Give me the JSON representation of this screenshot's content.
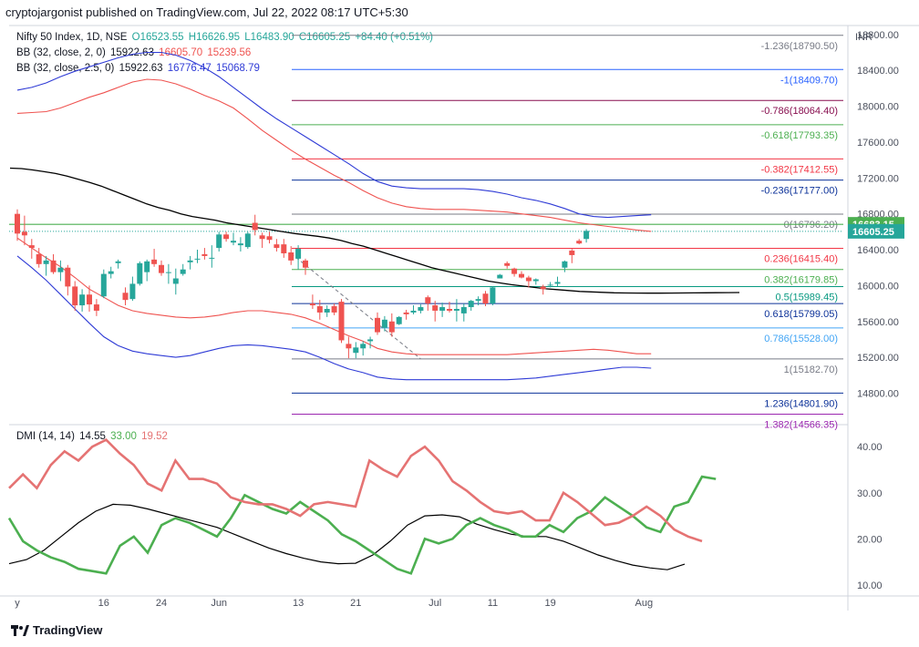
{
  "header": {
    "publisher": "cryptojargonist published on TradingView.com, Jul 22, 2022 08:17 UTC+5:30"
  },
  "legend": {
    "symbol": "Nifty 50 Index, 1D, NSE",
    "open": "O16523.55",
    "high": "H16626.95",
    "low": "L16483.90",
    "close": "C16605.25",
    "change": "+84.40 (+0.51%)",
    "bb1_name": "BB (32, close, 2, 0)",
    "bb1_basis": "15922.63",
    "bb1_upper": "16605.70",
    "bb1_lower": "15239.56",
    "bb2_name": "BB (32, close, 2.5, 0)",
    "bb2_basis": "15922.63",
    "bb2_upper": "16776.47",
    "bb2_lower": "15068.79",
    "dmi_name": "DMI (14, 14)",
    "dmi_adx": "14.55",
    "dmi_plus": "33.00",
    "dmi_minus": "19.52"
  },
  "axis": {
    "currency": "INR",
    "price_ticks": [
      "18800.00",
      "18400.00",
      "18000.00",
      "17600.00",
      "17200.00",
      "16800.00",
      "16400.00",
      "16000.00",
      "15600.00",
      "15200.00",
      "14800.00"
    ],
    "price_tick_values": [
      18800,
      18400,
      18000,
      17600,
      17200,
      16800,
      16400,
      16000,
      15600,
      15200,
      14800
    ],
    "dmi_ticks": [
      "40.00",
      "30.00",
      "20.00",
      "10.00"
    ],
    "dmi_tick_values": [
      40,
      30,
      20,
      10
    ],
    "date_labels": [
      "y",
      "16",
      "24",
      "Jun",
      "13",
      "21",
      "Jul",
      "11",
      "19",
      "Aug"
    ],
    "date_label_index": [
      0,
      12,
      20,
      28,
      39,
      47,
      58,
      66,
      74,
      87
    ],
    "price_badges": [
      {
        "text": "16683.15",
        "value": 16683.15,
        "color": "#4caf50"
      },
      {
        "text": "16605.25",
        "value": 16605.25,
        "color": "#26a69a"
      }
    ]
  },
  "fib_levels": [
    {
      "label": "-1.236(18790.50)",
      "value": 18790.5,
      "color": "#787b86"
    },
    {
      "label": "-1(18409.70)",
      "value": 18409.7,
      "color": "#2962ff"
    },
    {
      "label": "-0.786(18064.40)",
      "value": 18064.4,
      "color": "#880e4f"
    },
    {
      "label": "-0.618(17793.35)",
      "value": 17793.35,
      "color": "#4caf50"
    },
    {
      "label": "-0.382(17412.55)",
      "value": 17412.55,
      "color": "#f23645"
    },
    {
      "label": "-0.236(17177.00)",
      "value": 17177.0,
      "color": "#0c3299"
    },
    {
      "label": "0(16796.20)",
      "value": 16796.2,
      "color": "#787b86"
    },
    {
      "label": "0.236(16415.40)",
      "value": 16415.4,
      "color": "#f23645"
    },
    {
      "label": "0.382(16179.85)",
      "value": 16179.85,
      "color": "#4caf50"
    },
    {
      "label": "0.5(15989.45)",
      "value": 15989.45,
      "color": "#089981"
    },
    {
      "label": "0.618(15799.05)",
      "value": 15799.05,
      "color": "#0c3299"
    },
    {
      "label": "0.786(15528.00)",
      "value": 15528.0,
      "color": "#42a5f5"
    },
    {
      "label": "1(15182.70)",
      "value": 15182.7,
      "color": "#787b86"
    },
    {
      "label": "1.236(14801.90)",
      "value": 14801.9,
      "color": "#0c3299"
    },
    {
      "label": "1.382(14566.35)",
      "value": 14566.35,
      "color": "#9c27b0"
    }
  ],
  "colors": {
    "up": "#26a69a",
    "down": "#ef5350",
    "bb_basis": "#000000",
    "bb1": "#ef5350",
    "bb2": "#2f3bd6",
    "adx": "#000000",
    "di_plus": "#4caf50",
    "di_minus": "#e57373"
  },
  "chart_data": [
    {
      "type": "candlestick",
      "title": "Nifty 50 Index, 1D, NSE",
      "x_index_start": 0,
      "ylim": [
        14480,
        18900
      ],
      "ohlc": [
        [
          16800,
          16850,
          16500,
          16580
        ],
        [
          16600,
          16780,
          16450,
          16560
        ],
        [
          16450,
          16520,
          16300,
          16420
        ],
        [
          16350,
          16420,
          16200,
          16240
        ],
        [
          16240,
          16330,
          16110,
          16280
        ],
        [
          16280,
          16350,
          16130,
          16150
        ],
        [
          16150,
          16280,
          16050,
          16200
        ],
        [
          16200,
          16230,
          15890,
          15990
        ],
        [
          15990,
          16050,
          15720,
          15780
        ],
        [
          15780,
          15960,
          15710,
          15900
        ],
        [
          15900,
          16000,
          15710,
          15790
        ],
        [
          15790,
          15850,
          15660,
          15720
        ],
        [
          15880,
          16180,
          15860,
          16130
        ],
        [
          16130,
          16210,
          16080,
          16160
        ],
        [
          16250,
          16290,
          16190,
          16270
        ],
        [
          15920,
          15980,
          15780,
          15840
        ],
        [
          15850,
          16100,
          15830,
          16020
        ],
        [
          16020,
          16270,
          16000,
          16250
        ],
        [
          16150,
          16290,
          16050,
          16270
        ],
        [
          16290,
          16410,
          16210,
          16240
        ],
        [
          16230,
          16280,
          16110,
          16140
        ],
        [
          16140,
          16240,
          16020,
          16150
        ],
        [
          16020,
          16190,
          15900,
          16080
        ],
        [
          16130,
          16240,
          16110,
          16180
        ],
        [
          16260,
          16330,
          16180,
          16280
        ],
        [
          16300,
          16400,
          16250,
          16300
        ],
        [
          16350,
          16420,
          16290,
          16330
        ],
        [
          16310,
          16450,
          16200,
          16310
        ],
        [
          16420,
          16600,
          16380,
          16570
        ],
        [
          16570,
          16600,
          16490,
          16520
        ],
        [
          16480,
          16590,
          16450,
          16500
        ],
        [
          16450,
          16540,
          16380,
          16470
        ],
        [
          16430,
          16600,
          16410,
          16580
        ],
        [
          16700,
          16790,
          16560,
          16620
        ],
        [
          16560,
          16590,
          16420,
          16520
        ],
        [
          16550,
          16600,
          16470,
          16510
        ],
        [
          16460,
          16520,
          16380,
          16420
        ],
        [
          16460,
          16520,
          16310,
          16360
        ],
        [
          16370,
          16440,
          16230,
          16280
        ],
        [
          16300,
          16450,
          16180,
          16410
        ],
        [
          16280,
          16300,
          16120,
          16200
        ],
        [
          15800,
          15900,
          15740,
          15780
        ],
        [
          15770,
          15840,
          15620,
          15700
        ],
        [
          15700,
          15780,
          15650,
          15740
        ],
        [
          15770,
          15800,
          15670,
          15700
        ],
        [
          15820,
          15850,
          15360,
          15390
        ],
        [
          15350,
          15430,
          15190,
          15300
        ],
        [
          15250,
          15370,
          15190,
          15310
        ],
        [
          15300,
          15380,
          15220,
          15350
        ],
        [
          15380,
          15430,
          15300,
          15400
        ],
        [
          15640,
          15700,
          15450,
          15480
        ],
        [
          15530,
          15660,
          15490,
          15620
        ],
        [
          15600,
          15690,
          15430,
          15480
        ],
        [
          15570,
          15660,
          15560,
          15650
        ],
        [
          15700,
          15730,
          15620,
          15680
        ],
        [
          15700,
          15780,
          15680,
          15720
        ],
        [
          15720,
          15790,
          15690,
          15760
        ],
        [
          15870,
          15890,
          15720,
          15800
        ],
        [
          15780,
          15830,
          15600,
          15720
        ],
        [
          15720,
          15810,
          15650,
          15760
        ],
        [
          15740,
          15820,
          15700,
          15720
        ],
        [
          15720,
          15850,
          15600,
          15740
        ],
        [
          15690,
          15800,
          15600,
          15760
        ],
        [
          15760,
          15840,
          15720,
          15830
        ],
        [
          15830,
          15880,
          15780,
          15850
        ],
        [
          15910,
          15940,
          15770,
          15800
        ],
        [
          15800,
          15990,
          15780,
          15980
        ],
        [
          16080,
          16130,
          16080,
          16120
        ],
        [
          16250,
          16270,
          16190,
          16220
        ],
        [
          16190,
          16200,
          16100,
          16130
        ],
        [
          16130,
          16160,
          16080,
          16090
        ],
        [
          16090,
          16110,
          15980,
          16050
        ],
        [
          16050,
          16080,
          16010,
          16070
        ],
        [
          15990,
          16010,
          15900,
          15960
        ],
        [
          16000,
          16040,
          15980,
          16010
        ],
        [
          16020,
          16100,
          15990,
          16040
        ],
        [
          16200,
          16280,
          16150,
          16270
        ],
        [
          16390,
          16410,
          16250,
          16340
        ],
        [
          16500,
          16520,
          16460,
          16470
        ],
        [
          16520,
          16630,
          16480,
          16610
        ]
      ],
      "bb_basis": [
        17310,
        17305,
        17290,
        17270,
        17250,
        17220,
        17185,
        17150,
        17110,
        17060,
        17010,
        16960,
        16910,
        16870,
        16840,
        16800,
        16770,
        16750,
        16730,
        16700,
        16680,
        16660,
        16640,
        16620,
        16600,
        16580,
        16565,
        16550,
        16530,
        16505,
        16470,
        16440,
        16400,
        16360,
        16320,
        16280,
        16240,
        16200,
        16170,
        16140,
        16110,
        16080,
        16050,
        16030,
        16010,
        15995,
        15980,
        15965,
        15955,
        15945,
        15935,
        15930,
        15925,
        15920,
        15918,
        15917,
        15916,
        15916,
        15917,
        15918,
        15919,
        15920,
        15921,
        15922,
        15923
      ],
      "bb1_upper": [
        17920,
        17930,
        17940,
        17980,
        18040,
        18100,
        18150,
        18210,
        18270,
        18300,
        18290,
        18250,
        18190,
        18120,
        18060,
        17980,
        17860,
        17730,
        17620,
        17510,
        17410,
        17320,
        17230,
        17150,
        17060,
        16980,
        16920,
        16880,
        16860,
        16850,
        16850,
        16850,
        16840,
        16830,
        16820,
        16800,
        16780,
        16760,
        16730,
        16700,
        16680,
        16660,
        16640,
        16620,
        16605
      ],
      "bb1_lower": [
        16530,
        16420,
        16310,
        16210,
        16090,
        15960,
        15870,
        15780,
        15720,
        15690,
        15670,
        15650,
        15640,
        15650,
        15670,
        15700,
        15720,
        15720,
        15700,
        15680,
        15640,
        15580,
        15510,
        15440,
        15380,
        15300,
        15260,
        15240,
        15230,
        15230,
        15230,
        15230,
        15230,
        15230,
        15230,
        15240,
        15250,
        15260,
        15270,
        15280,
        15290,
        15280,
        15260,
        15240,
        15240
      ],
      "bb2_upper": [
        18180,
        18210,
        18260,
        18330,
        18390,
        18440,
        18490,
        18540,
        18580,
        18600,
        18600,
        18570,
        18510,
        18430,
        18330,
        18210,
        18090,
        17970,
        17860,
        17760,
        17660,
        17560,
        17460,
        17360,
        17250,
        17160,
        17110,
        17090,
        17080,
        17080,
        17080,
        17080,
        17070,
        17050,
        17020,
        16980,
        16950,
        16910,
        16860,
        16800,
        16770,
        16760,
        16770,
        16780,
        16790
      ],
      "bb2_lower": [
        16330,
        16200,
        16060,
        15900,
        15740,
        15580,
        15430,
        15330,
        15270,
        15240,
        15220,
        15200,
        15220,
        15260,
        15300,
        15330,
        15340,
        15330,
        15310,
        15290,
        15260,
        15200,
        15130,
        15070,
        15030,
        14980,
        14960,
        14950,
        14950,
        14950,
        14950,
        14950,
        14950,
        14950,
        14950,
        14960,
        14970,
        14990,
        15010,
        15030,
        15050,
        15070,
        15090,
        15090,
        15080
      ]
    },
    {
      "type": "line",
      "title": "DMI (14, 14)",
      "ylim": [
        8,
        44
      ],
      "series": [
        {
          "name": "ADX",
          "values": [
            14.6,
            15.5,
            17.5,
            20.5,
            23.5,
            26,
            27.5,
            27.3,
            26.5,
            25.5,
            24.5,
            23.5,
            22.5,
            21,
            19.5,
            18,
            16.8,
            15.8,
            15,
            14.6,
            14.7,
            16.5,
            19.5,
            23,
            25,
            25.2,
            24.8,
            23.2,
            22,
            21,
            20.5,
            20.5,
            19.5,
            18,
            16.5,
            15.3,
            14.3,
            13.7,
            13.3,
            14.5
          ]
        },
        {
          "name": "+DI",
          "values": [
            24.5,
            19.5,
            17.5,
            16,
            15,
            13.5,
            13,
            12.5,
            18.5,
            20.5,
            17,
            23,
            24.5,
            23.5,
            22,
            20.5,
            24.5,
            29.5,
            28,
            26.5,
            25.5,
            28,
            26,
            24,
            21,
            19.5,
            17.5,
            15.5,
            13.5,
            12.5,
            20,
            19,
            20,
            23,
            24.5,
            23,
            22,
            20.5,
            20.5,
            23,
            21.5,
            24.5,
            26,
            29,
            27,
            25,
            22.5,
            21.5,
            27,
            28,
            33.5,
            33
          ]
        },
        {
          "name": "-DI",
          "values": [
            31,
            34,
            31,
            36,
            39,
            37,
            40,
            41.5,
            38.5,
            36,
            32,
            30.5,
            37,
            33,
            33,
            32,
            29,
            28,
            27.5,
            27.5,
            26.5,
            25,
            27.5,
            28,
            27.5,
            27,
            37,
            35,
            33.5,
            38,
            40,
            37,
            32.5,
            30.5,
            28,
            26,
            25.5,
            26,
            24,
            24,
            30,
            28,
            25.5,
            23,
            23.5,
            25,
            27,
            25,
            22,
            20.5,
            19.5
          ]
        }
      ]
    }
  ]
}
